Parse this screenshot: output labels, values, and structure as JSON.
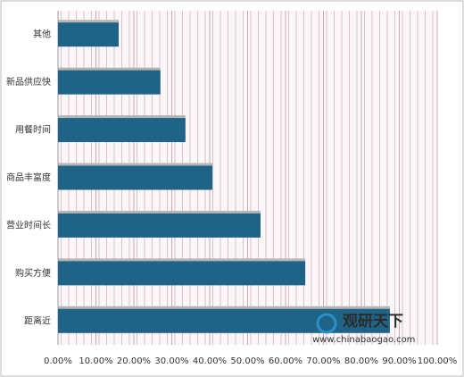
{
  "chart_data": {
    "type": "bar",
    "orientation": "horizontal",
    "categories": [
      "其他",
      "新品供应快",
      "用餐时间",
      "商品丰富度",
      "营业时间长",
      "购买方便",
      "距离近"
    ],
    "values": [
      16,
      27,
      33.6,
      40.7,
      53.4,
      65.2,
      87.5
    ],
    "color": "#1f6486",
    "xlim": [
      0,
      100
    ],
    "xticks": [
      {
        "value": 0,
        "label": "0.00%"
      },
      {
        "value": 10,
        "label": "10.00%"
      },
      {
        "value": 20,
        "label": "20.00%"
      },
      {
        "value": 30,
        "label": "30.00%"
      },
      {
        "value": 40,
        "label": "40.00%"
      },
      {
        "value": 50,
        "label": "50.00%"
      },
      {
        "value": 60,
        "label": "60.00%"
      },
      {
        "value": 70,
        "label": "70.00%"
      },
      {
        "value": 80,
        "label": "80.00%"
      },
      {
        "value": 90,
        "label": "90.00%"
      },
      {
        "value": 100,
        "label": "100.00%"
      }
    ],
    "grid": true,
    "watermark": {
      "name": "观研天下",
      "url": "www.chinabaogao.com"
    }
  }
}
